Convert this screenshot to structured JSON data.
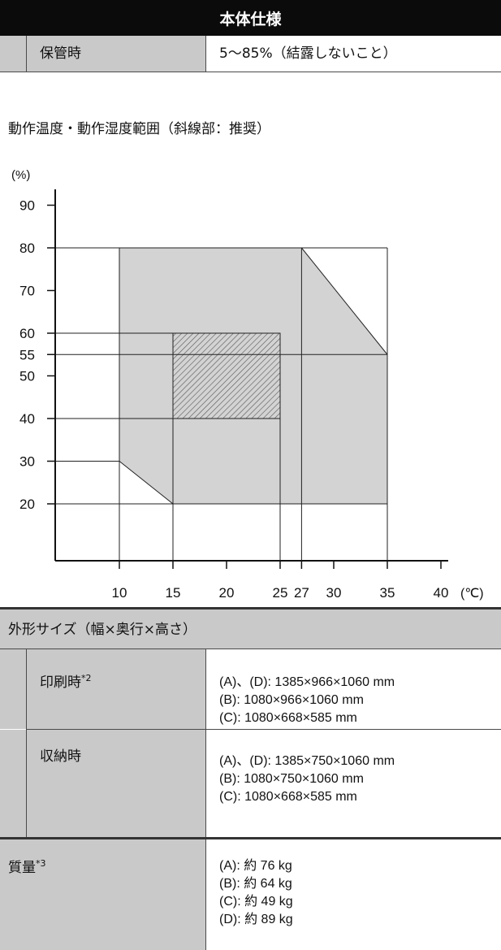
{
  "header": {
    "title": "本体仕様"
  },
  "storage": {
    "label": "保管時",
    "value": "5〜85%（結露しないこと）"
  },
  "range_section": {
    "title": "動作温度・動作湿度範囲（斜線部：推奨）"
  },
  "chart_data": {
    "type": "area",
    "y_unit_label": "(%)",
    "x_unit_label": "(℃)",
    "y_ticks": [
      {
        "label": "90",
        "value": 90
      },
      {
        "label": "80",
        "value": 80
      },
      {
        "label": "70",
        "value": 70
      },
      {
        "label": "60",
        "value": 60
      },
      {
        "label": "55",
        "value": 55
      },
      {
        "label": "50",
        "value": 50
      },
      {
        "label": "40",
        "value": 40
      },
      {
        "label": "30",
        "value": 30
      },
      {
        "label": "20",
        "value": 20
      }
    ],
    "x_ticks": [
      {
        "label": "10",
        "value": 10
      },
      {
        "label": "15",
        "value": 15
      },
      {
        "label": "20",
        "value": 20
      },
      {
        "label": "25",
        "value": 25
      },
      {
        "label": "27",
        "value": 27
      },
      {
        "label": "30",
        "value": 30
      },
      {
        "label": "35",
        "value": 35
      },
      {
        "label": "40",
        "value": 40
      }
    ],
    "operating_region": [
      [
        10,
        30
      ],
      [
        10,
        80
      ],
      [
        27,
        80
      ],
      [
        35,
        55
      ],
      [
        35,
        20
      ],
      [
        15,
        20
      ]
    ],
    "recommended_region": [
      [
        15,
        40
      ],
      [
        15,
        60
      ],
      [
        25,
        60
      ],
      [
        25,
        40
      ]
    ],
    "xlim": [
      7,
      40
    ],
    "ylim": [
      12,
      90
    ],
    "colors": {
      "operating": "#d3d3d3",
      "recommended_hatch": "#555555"
    }
  },
  "dimensions": {
    "title": "外形サイズ（幅×奥行×高さ）",
    "printing": {
      "label": "印刷時",
      "note": "*2",
      "lines": [
        "(A)、(D): 1385×966×1060 mm",
        "(B): 1080×966×1060 mm",
        "(C): 1080×668×585 mm"
      ]
    },
    "storage": {
      "label": "収納時",
      "lines": [
        "(A)、(D): 1385×750×1060 mm",
        "(B): 1080×750×1060 mm",
        "(C): 1080×668×585 mm"
      ]
    }
  },
  "weight": {
    "label": "質量",
    "note": "*3",
    "lines": [
      "(A): 約 76 kg",
      "(B): 約 64 kg",
      "(C): 約 49 kg",
      "(D): 約 89 kg"
    ]
  }
}
